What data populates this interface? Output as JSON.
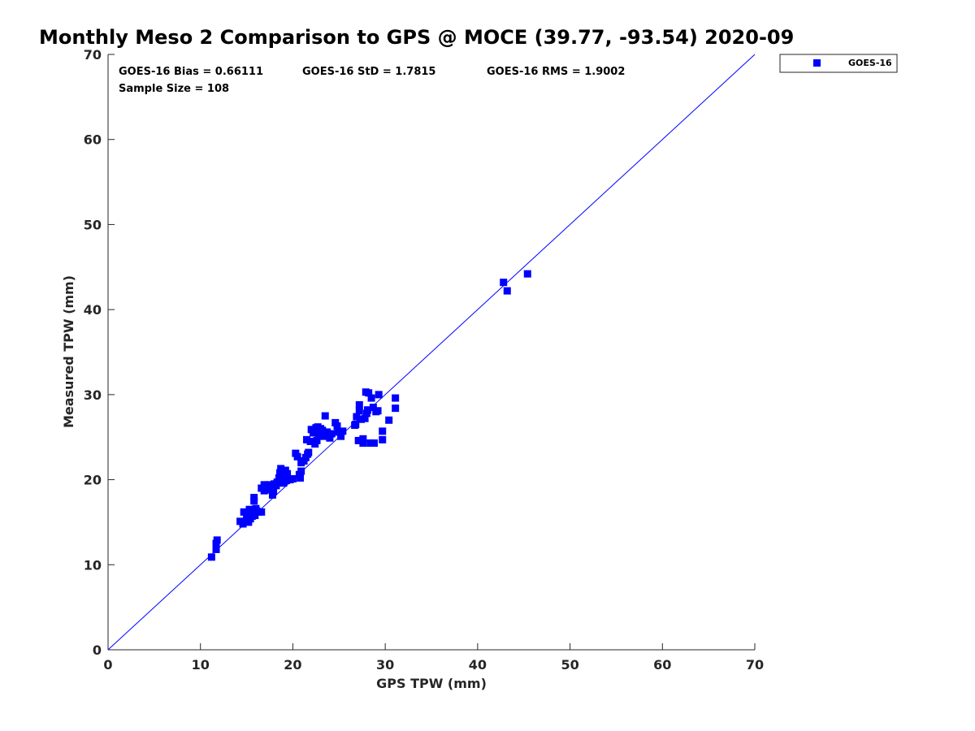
{
  "chart_data": {
    "type": "scatter",
    "title": "Monthly Meso 2 Comparison to GPS @ MOCE (39.77, -93.54) 2020-09",
    "xlabel": "GPS TPW (mm)",
    "ylabel": "Measured TPW (mm)",
    "xlim": [
      0,
      70
    ],
    "ylim": [
      0,
      70
    ],
    "xticks": [
      "0",
      "10",
      "20",
      "30",
      "40",
      "50",
      "60",
      "70"
    ],
    "yticks": [
      "0",
      "10",
      "20",
      "30",
      "40",
      "50",
      "60",
      "70"
    ],
    "grid": false,
    "legend_position": "outside-top-right",
    "reference_line": {
      "from": [
        0,
        0
      ],
      "to": [
        70,
        70
      ],
      "color": "#0000ff"
    },
    "stats": {
      "bias": "GOES-16 Bias = 0.66111",
      "std": "GOES-16 StD = 1.7815",
      "rms": "GOES-16 RMS = 1.9002",
      "sample_size": "Sample Size = 108"
    },
    "series": [
      {
        "name": "GOES-16",
        "color": "#0000ff",
        "marker": "square",
        "points": [
          [
            11.2,
            10.9
          ],
          [
            11.7,
            11.8
          ],
          [
            11.7,
            12.5
          ],
          [
            11.8,
            12.9
          ],
          [
            14.3,
            15.1
          ],
          [
            14.6,
            14.8
          ],
          [
            14.7,
            16.2
          ],
          [
            15.0,
            15.6
          ],
          [
            15.1,
            15.9
          ],
          [
            15.2,
            15.0
          ],
          [
            15.3,
            16.5
          ],
          [
            15.4,
            15.4
          ],
          [
            15.5,
            16.1
          ],
          [
            15.6,
            15.7
          ],
          [
            15.7,
            16.4
          ],
          [
            15.8,
            17.5
          ],
          [
            15.8,
            17.9
          ],
          [
            16.1,
            16.3
          ],
          [
            16.3,
            16.2
          ],
          [
            16.6,
            16.2
          ],
          [
            16.6,
            19.0
          ],
          [
            16.9,
            18.7
          ],
          [
            16.9,
            19.4
          ],
          [
            17.1,
            19.1
          ],
          [
            17.3,
            18.8
          ],
          [
            17.6,
            19.2
          ],
          [
            17.7,
            19.0
          ],
          [
            17.8,
            18.2
          ],
          [
            17.9,
            18.6
          ],
          [
            18.0,
            19.5
          ],
          [
            18.2,
            19.3
          ],
          [
            18.3,
            19.7
          ],
          [
            18.5,
            20.2
          ],
          [
            18.6,
            20.8
          ],
          [
            18.7,
            21.3
          ],
          [
            18.8,
            20.0
          ],
          [
            19.0,
            19.6
          ],
          [
            19.1,
            20.4
          ],
          [
            19.2,
            21.1
          ],
          [
            19.3,
            19.9
          ],
          [
            19.5,
            20.1
          ],
          [
            19.7,
            20.0
          ],
          [
            20.0,
            20.1
          ],
          [
            20.3,
            23.1
          ],
          [
            20.5,
            22.7
          ],
          [
            20.7,
            20.6
          ],
          [
            20.8,
            20.2
          ],
          [
            20.9,
            21.0
          ],
          [
            20.9,
            22.0
          ],
          [
            21.2,
            22.2
          ],
          [
            21.4,
            22.6
          ],
          [
            21.5,
            24.7
          ],
          [
            21.7,
            23.2
          ],
          [
            21.9,
            24.5
          ],
          [
            22.0,
            25.9
          ],
          [
            22.2,
            25.5
          ],
          [
            22.4,
            24.2
          ],
          [
            22.5,
            26.1
          ],
          [
            22.6,
            24.6
          ],
          [
            22.8,
            25.2
          ],
          [
            23.0,
            26.0
          ],
          [
            23.2,
            25.8
          ],
          [
            23.3,
            25.1
          ],
          [
            23.5,
            27.5
          ],
          [
            23.7,
            25.6
          ],
          [
            24.0,
            24.9
          ],
          [
            24.6,
            26.7
          ],
          [
            24.8,
            26.3
          ],
          [
            24.9,
            25.6
          ],
          [
            25.2,
            25.1
          ],
          [
            25.4,
            25.7
          ],
          [
            26.7,
            26.4
          ],
          [
            26.9,
            27.4
          ],
          [
            27.1,
            24.6
          ],
          [
            27.2,
            28.1
          ],
          [
            27.2,
            28.8
          ],
          [
            27.4,
            27.1
          ],
          [
            27.6,
            24.3
          ],
          [
            27.6,
            24.8
          ],
          [
            27.8,
            27.2
          ],
          [
            27.9,
            30.3
          ],
          [
            28.0,
            27.8
          ],
          [
            28.1,
            28.2
          ],
          [
            28.2,
            30.2
          ],
          [
            28.4,
            24.3
          ],
          [
            28.5,
            29.6
          ],
          [
            28.7,
            28.5
          ],
          [
            28.8,
            24.3
          ],
          [
            29.0,
            28.0
          ],
          [
            29.2,
            28.1
          ],
          [
            29.3,
            30.0
          ],
          [
            29.7,
            25.7
          ],
          [
            29.7,
            24.7
          ],
          [
            30.4,
            27.0
          ],
          [
            31.1,
            29.6
          ],
          [
            31.1,
            28.4
          ],
          [
            42.8,
            43.2
          ],
          [
            43.2,
            42.2
          ],
          [
            45.4,
            44.2
          ],
          [
            16.0,
            16.6
          ],
          [
            17.4,
            19.4
          ],
          [
            19.4,
            20.7
          ],
          [
            21.6,
            23.0
          ],
          [
            22.7,
            26.2
          ],
          [
            24.2,
            25.4
          ],
          [
            15.9,
            15.8
          ],
          [
            18.9,
            20.5
          ],
          [
            26.8,
            26.5
          ]
        ]
      }
    ]
  }
}
